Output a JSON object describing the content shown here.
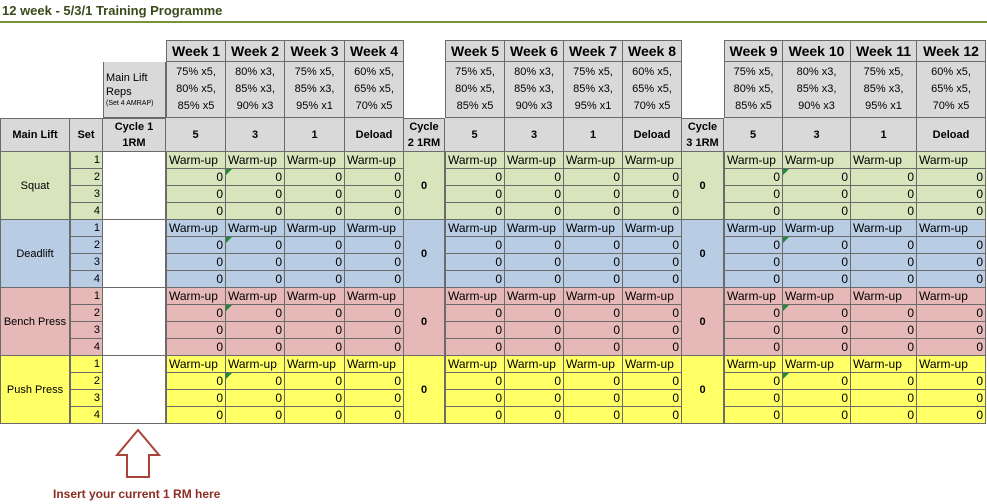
{
  "title": "12 week - 5/3/1 Training Programme",
  "weeks": [
    "Week 1",
    "Week 2",
    "Week 3",
    "Week 4",
    "Week 5",
    "Week 6",
    "Week 7",
    "Week 8",
    "Week 9",
    "Week 10",
    "Week 11",
    "Week 12"
  ],
  "reps_label": {
    "title": "Main Lift Reps",
    "note": "(Set 4 AMRAP)"
  },
  "reps": [
    "75% x5, 80% x5, 85% x5",
    "80% x3, 85% x3, 90% x3",
    "75% x5, 85% x3, 95% x1",
    "60% x5, 65% x5, 70% x5",
    "75% x5, 80% x5, 85% x5",
    "80% x3, 85% x3, 90% x3",
    "75% x5, 85% x3, 95% x1",
    "60% x5, 65% x5, 70% x5",
    "75% x5, 80% x5, 85% x5",
    "80% x3, 85% x3, 90% x3",
    "75% x5, 85% x3, 95% x1",
    "60% x5, 65% x5, 70% x5"
  ],
  "header": {
    "main_lift": "Main Lift",
    "set": "Set",
    "cycles": [
      "Cycle 1 1RM",
      "Cycle 2 1RM",
      "Cycle 3 1RM"
    ],
    "week_sets": [
      "5",
      "3",
      "1",
      "Deload",
      "5",
      "3",
      "1",
      "Deload",
      "5",
      "3",
      "1",
      "Deload"
    ]
  },
  "lifts": [
    {
      "name": "Squat",
      "color": "#d8e4bc",
      "sets": [
        1,
        2,
        3,
        4
      ],
      "later_cycles_1rm": [
        0,
        0
      ],
      "rows": [
        [
          "Warm-up",
          "Warm-up",
          "Warm-up",
          "Warm-up",
          "Warm-up",
          "Warm-up",
          "Warm-up",
          "Warm-up",
          "Warm-up",
          "Warm-up",
          "Warm-up",
          "Warm-up"
        ],
        [
          0,
          0,
          0,
          0,
          0,
          0,
          0,
          0,
          0,
          0,
          0,
          0
        ],
        [
          0,
          0,
          0,
          0,
          0,
          0,
          0,
          0,
          0,
          0,
          0,
          0
        ],
        [
          0,
          0,
          0,
          0,
          0,
          0,
          0,
          0,
          0,
          0,
          0,
          0
        ]
      ]
    },
    {
      "name": "Deadlift",
      "color": "#b8cce4",
      "sets": [
        1,
        2,
        3,
        4
      ],
      "later_cycles_1rm": [
        0,
        0
      ],
      "rows": [
        [
          "Warm-up",
          "Warm-up",
          "Warm-up",
          "Warm-up",
          "Warm-up",
          "Warm-up",
          "Warm-up",
          "Warm-up",
          "Warm-up",
          "Warm-up",
          "Warm-up",
          "Warm-up"
        ],
        [
          0,
          0,
          0,
          0,
          0,
          0,
          0,
          0,
          0,
          0,
          0,
          0
        ],
        [
          0,
          0,
          0,
          0,
          0,
          0,
          0,
          0,
          0,
          0,
          0,
          0
        ],
        [
          0,
          0,
          0,
          0,
          0,
          0,
          0,
          0,
          0,
          0,
          0,
          0
        ]
      ]
    },
    {
      "name": "Bench Press",
      "color": "#e6b8b7",
      "sets": [
        1,
        2,
        3,
        4
      ],
      "later_cycles_1rm": [
        0,
        0
      ],
      "rows": [
        [
          "Warm-up",
          "Warm-up",
          "Warm-up",
          "Warm-up",
          "Warm-up",
          "Warm-up",
          "Warm-up",
          "Warm-up",
          "Warm-up",
          "Warm-up",
          "Warm-up",
          "Warm-up"
        ],
        [
          0,
          0,
          0,
          0,
          0,
          0,
          0,
          0,
          0,
          0,
          0,
          0
        ],
        [
          0,
          0,
          0,
          0,
          0,
          0,
          0,
          0,
          0,
          0,
          0,
          0
        ],
        [
          0,
          0,
          0,
          0,
          0,
          0,
          0,
          0,
          0,
          0,
          0,
          0
        ]
      ]
    },
    {
      "name": "Push Press",
      "color": "#ffff66",
      "sets": [
        1,
        2,
        3,
        4
      ],
      "later_cycles_1rm": [
        0,
        0
      ],
      "rows": [
        [
          "Warm-up",
          "Warm-up",
          "Warm-up",
          "Warm-up",
          "Warm-up",
          "Warm-up",
          "Warm-up",
          "Warm-up",
          "Warm-up",
          "Warm-up",
          "Warm-up",
          "Warm-up"
        ],
        [
          0,
          0,
          0,
          0,
          0,
          0,
          0,
          0,
          0,
          0,
          0,
          0
        ],
        [
          0,
          0,
          0,
          0,
          0,
          0,
          0,
          0,
          0,
          0,
          0,
          0
        ],
        [
          0,
          0,
          0,
          0,
          0,
          0,
          0,
          0,
          0,
          0,
          0,
          0
        ]
      ]
    }
  ],
  "annotation": "Insert your current 1 RM here"
}
